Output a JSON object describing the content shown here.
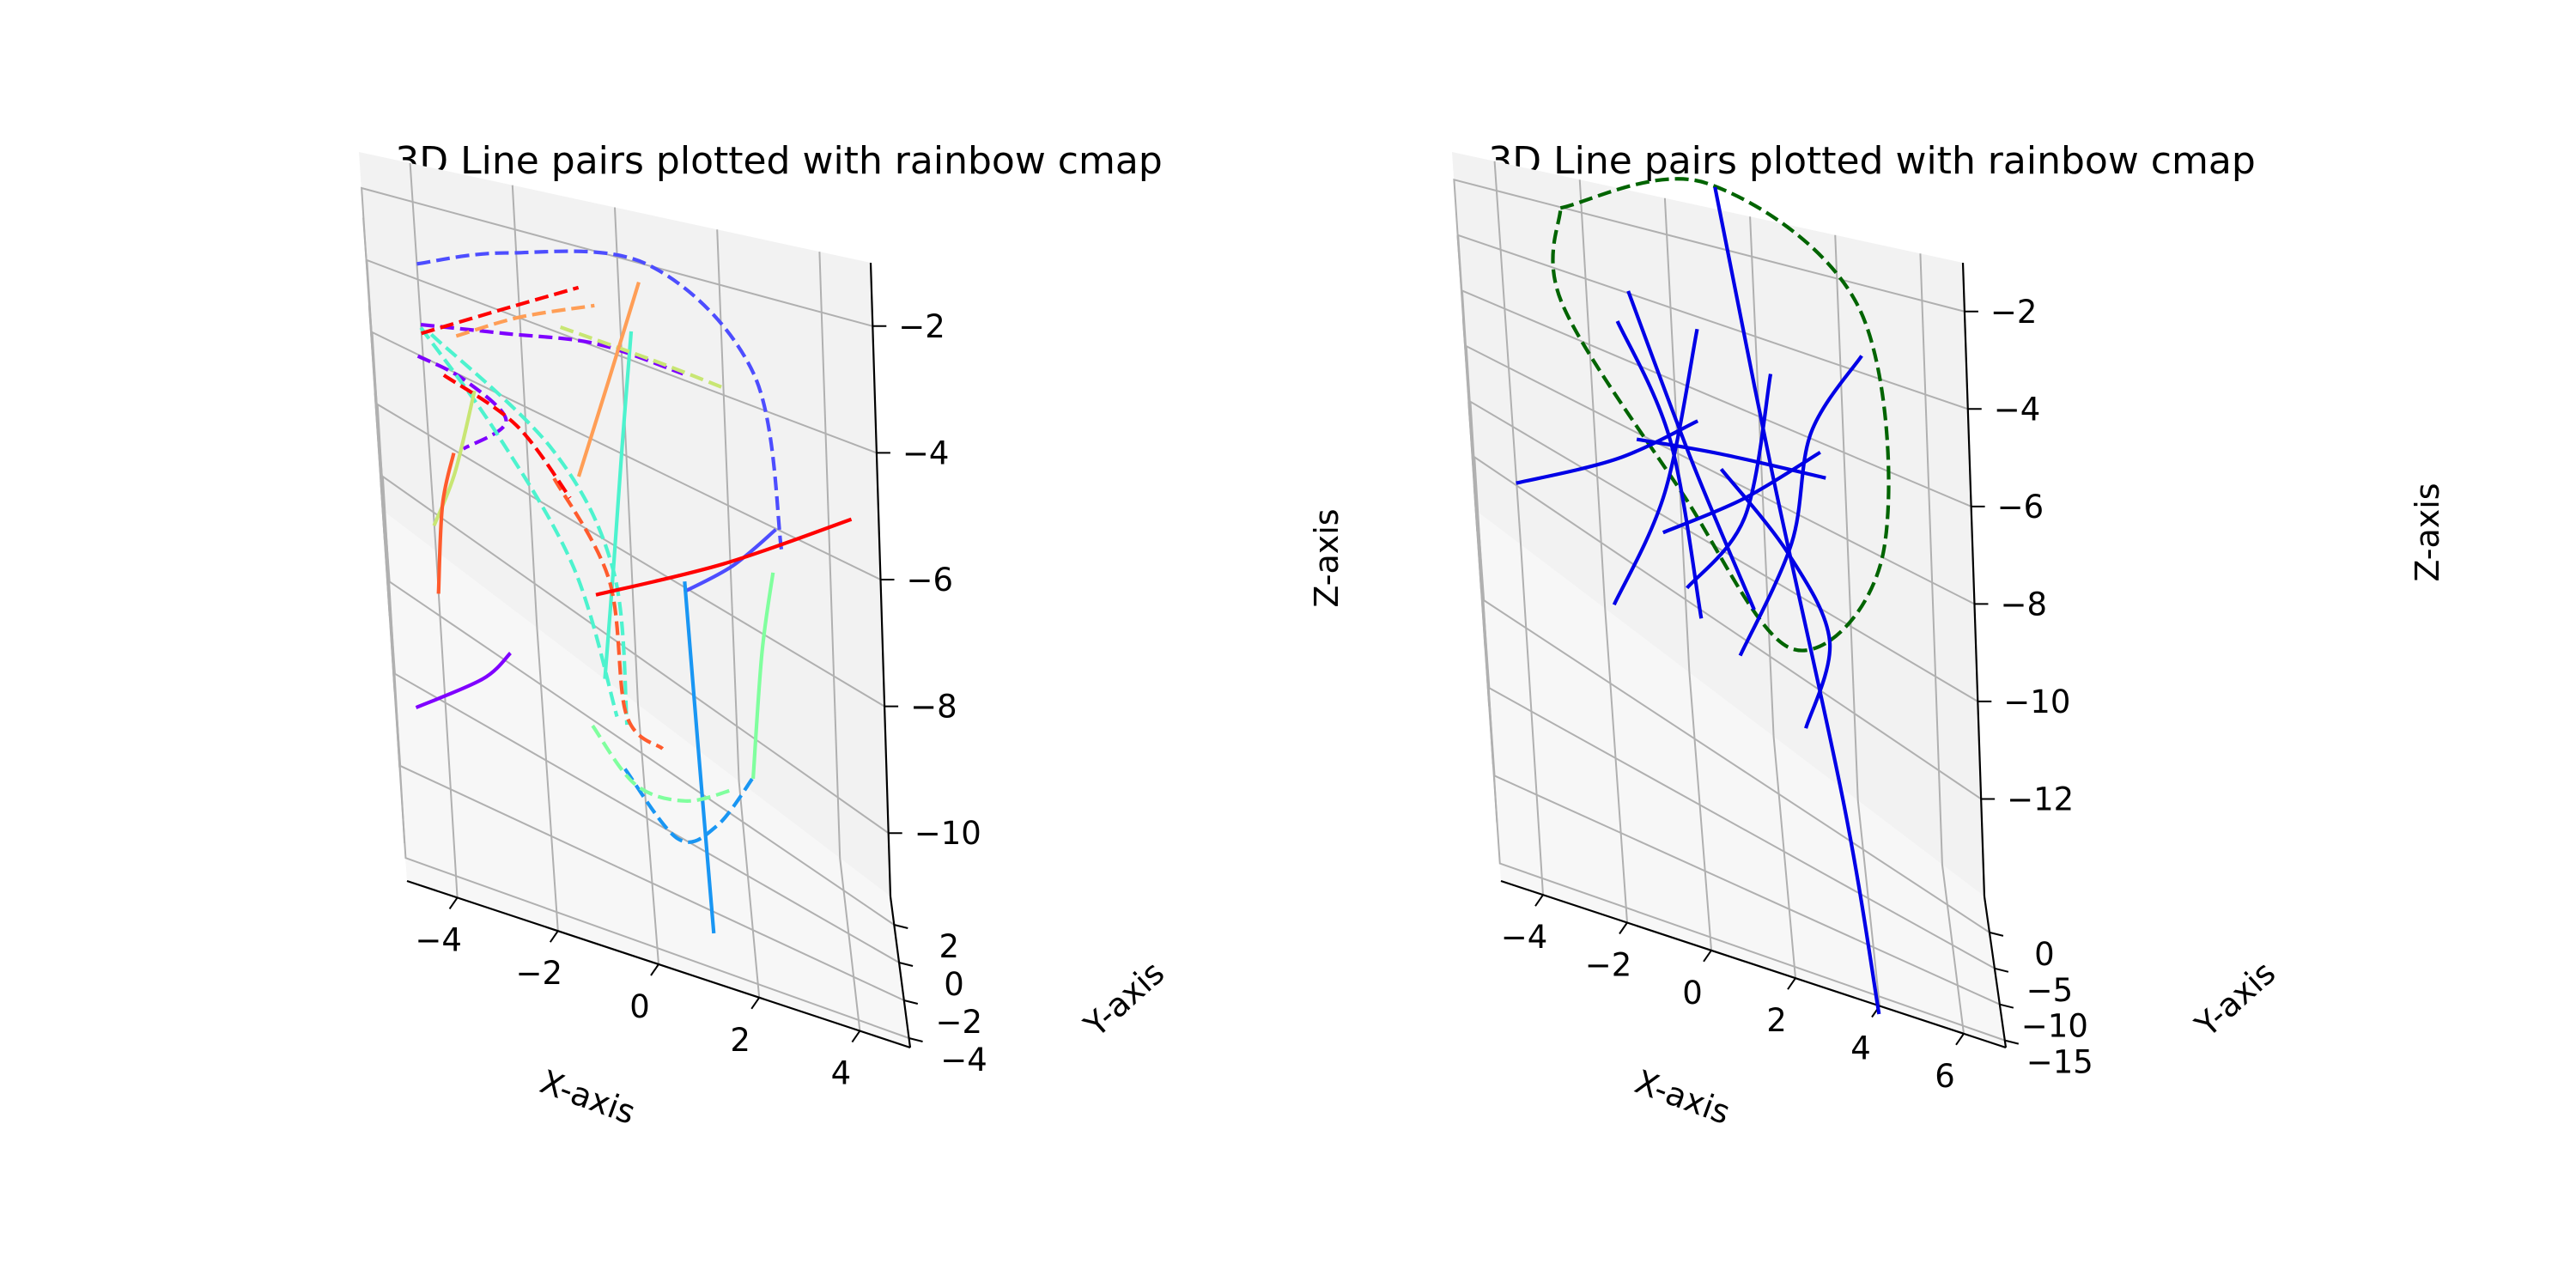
{
  "figure": {
    "background": "#ffffff",
    "pane_colors": [
      "#ececec",
      "#f2f2f2",
      "#f7f7f7"
    ],
    "grid_color": "#b0b0b0"
  },
  "chart_data": [
    {
      "type": "line3d",
      "title": "3D Line pairs plotted with rainbow cmap",
      "xlabel": "X-axis",
      "ylabel": "Y-axis",
      "zlabel": "Z-axis",
      "xlim": [
        -5,
        5
      ],
      "ylim": [
        -4.5,
        3.5
      ],
      "zlim": [
        -11,
        -1
      ],
      "xticks": [
        -4,
        -2,
        0,
        2,
        4
      ],
      "xtick_labels": [
        "−4",
        "−2",
        "0",
        "2",
        "4"
      ],
      "yticks": [
        -4,
        -2,
        0,
        2
      ],
      "ytick_labels": [
        "−4",
        "−2",
        "0",
        "2"
      ],
      "zticks": [
        -10,
        -8,
        -6,
        -4,
        -2
      ],
      "ztick_labels": [
        "−10",
        "−8",
        "−6",
        "−4",
        "−2"
      ],
      "grid": true,
      "legend": "none",
      "colormap": "rainbow",
      "series": [
        {
          "color": "#7f00ff",
          "style": "solid",
          "points": [
            [
              -4.6,
              -1.5,
              -9.8
            ],
            [
              -3.2,
              -0.6,
              -9.2
            ],
            [
              -2.6,
              0.0,
              -8.8
            ]
          ]
        },
        {
          "color": "#7f00ff",
          "style": "dashed",
          "points": [
            [
              -4.1,
              2.5,
              -4.9
            ],
            [
              -3.2,
              2.2,
              -4.7
            ],
            [
              -2.4,
              1.8,
              -4.9
            ],
            [
              -3.3,
              1.2,
              -5.4
            ]
          ]
        },
        {
          "color": "#7f00ff",
          "style": "dashed",
          "points": [
            [
              -4.0,
              3.0,
              -4.6
            ],
            [
              -2.3,
              3.0,
              -4.0
            ],
            [
              -0.5,
              3.0,
              -3.5
            ],
            [
              1.2,
              3.0,
              -3.5
            ]
          ]
        },
        {
          "color": "#4d4dff",
          "style": "dashed",
          "points": [
            [
              -4.0,
              3.5,
              -3.6
            ],
            [
              -2.2,
              3.5,
              -2.6
            ],
            [
              0.6,
              3.4,
              -1.9
            ],
            [
              2.6,
              2.4,
              -2.6
            ],
            [
              3.0,
              1.4,
              -5.0
            ]
          ]
        },
        {
          "color": "#4d4dff",
          "style": "solid",
          "points": [
            [
              1.0,
              0.8,
              -6.2
            ],
            [
              2.0,
              1.0,
              -5.4
            ],
            [
              2.9,
              1.2,
              -4.5
            ]
          ]
        },
        {
          "color": "#1996f3",
          "style": "solid",
          "points": [
            [
              1.0,
              -1.0,
              -4.5
            ],
            [
              1.1,
              -1.5,
              -8.0
            ],
            [
              1.2,
              -2.0,
              -11.5
            ]
          ]
        },
        {
          "color": "#1996f3",
          "style": "dashed",
          "points": [
            [
              -0.4,
              -0.2,
              -10.0
            ],
            [
              0.6,
              -0.4,
              -10.8
            ],
            [
              1.4,
              -0.8,
              -9.8
            ],
            [
              2.2,
              -1.0,
              -8.2
            ]
          ]
        },
        {
          "color": "#4df3ce",
          "style": "dashed",
          "points": [
            [
              -3.8,
              2.6,
              -4.3
            ],
            [
              -1.5,
              2.2,
              -5.5
            ],
            [
              -0.4,
              1.5,
              -7.0
            ],
            [
              -0.3,
              0.5,
              -9.5
            ]
          ]
        },
        {
          "color": "#4df3ce",
          "style": "solid",
          "points": [
            [
              -0.7,
              0.6,
              -8.8
            ],
            [
              -0.4,
              1.0,
              -6.5
            ],
            [
              -0.1,
              1.6,
              -4.3
            ],
            [
              0.2,
              2.2,
              -2.3
            ]
          ]
        },
        {
          "color": "#4df3ce",
          "style": "dashed",
          "points": [
            [
              -4.0,
              2.4,
              -4.0
            ],
            [
              -2.6,
              2.0,
              -5.5
            ],
            [
              -1.2,
              1.3,
              -7.2
            ],
            [
              -0.5,
              0.2,
              -9.2
            ]
          ]
        },
        {
          "color": "#80ff9e",
          "style": "solid",
          "points": [
            [
              2.2,
              0.0,
              -8.9
            ],
            [
              2.5,
              0.4,
              -6.5
            ],
            [
              2.8,
              0.7,
              -5.0
            ]
          ]
        },
        {
          "color": "#80ff9e",
          "style": "dashed",
          "points": [
            [
              -1.0,
              0.8,
              -10.2
            ],
            [
              -0.2,
              0.3,
              -10.6
            ],
            [
              0.8,
              -0.2,
              -10.0
            ],
            [
              1.8,
              -0.8,
              -8.8
            ]
          ]
        },
        {
          "color": "#c8e673",
          "style": "solid",
          "points": [
            [
              -4.0,
              2.3,
              -9.0
            ],
            [
              -3.5,
              2.5,
              -7.5
            ],
            [
              -3.0,
              2.8,
              -5.5
            ]
          ]
        },
        {
          "color": "#c8e673",
          "style": "dashed",
          "points": [
            [
              -1.2,
              3.1,
              -3.5
            ],
            [
              0.6,
              3.2,
              -3.6
            ],
            [
              2.0,
              3.0,
              -3.5
            ]
          ]
        },
        {
          "color": "#ff9e56",
          "style": "dashed",
          "points": [
            [
              -3.3,
              2.6,
              -4.1
            ],
            [
              -2.0,
              2.8,
              -3.3
            ],
            [
              -0.5,
              3.0,
              -2.7
            ]
          ]
        },
        {
          "color": "#ff9e56",
          "style": "solid",
          "points": [
            [
              -1.0,
              1.8,
              -5.5
            ],
            [
              -0.3,
              2.2,
              -3.5
            ],
            [
              0.4,
              2.6,
              -1.6
            ]
          ]
        },
        {
          "color": "#ff5b2d",
          "style": "solid",
          "points": [
            [
              -4.0,
              1.8,
              -10.2
            ],
            [
              -3.8,
              2.0,
              -8.0
            ],
            [
              -3.5,
              2.3,
              -6.8
            ]
          ]
        },
        {
          "color": "#ff5b2d",
          "style": "dashed",
          "points": [
            [
              -1.5,
              1.6,
              -5.6
            ],
            [
              -0.5,
              1.2,
              -7.0
            ],
            [
              -0.3,
              0.8,
              -9.5
            ],
            [
              0.4,
              0.5,
              -9.6
            ]
          ]
        },
        {
          "color": "#ff0000",
          "style": "solid",
          "points": [
            [
              -0.8,
              -0.6,
              -5.9
            ],
            [
              1.8,
              -0.8,
              -4.0
            ],
            [
              4.4,
              -1.0,
              -2.1
            ]
          ]
        },
        {
          "color": "#ff0000",
          "style": "dashed",
          "points": [
            [
              -4.0,
              2.8,
              -4.6
            ],
            [
              -2.4,
              3.1,
              -3.6
            ],
            [
              -0.8,
              3.2,
              -2.6
            ]
          ]
        },
        {
          "color": "#ff0000",
          "style": "dashed",
          "points": [
            [
              -3.6,
              2.3,
              -4.9
            ],
            [
              -2.2,
              2.0,
              -5.1
            ],
            [
              -1.2,
              1.5,
              -5.8
            ]
          ]
        }
      ]
    },
    {
      "type": "line3d",
      "title": "3D Line pairs plotted with rainbow cmap",
      "xlabel": "X-axis",
      "ylabel": "Y-axis",
      "zlabel": "Z-axis",
      "xlim": [
        -5,
        7
      ],
      "ylim": [
        -16,
        5
      ],
      "zlim": [
        -14,
        -1
      ],
      "xticks": [
        -4,
        -2,
        0,
        2,
        4,
        6
      ],
      "xtick_labels": [
        "−4",
        "−2",
        "0",
        "2",
        "4",
        "6"
      ],
      "yticks": [
        -15,
        -10,
        -5,
        0
      ],
      "ytick_labels": [
        "−15",
        "−10",
        "−5",
        "0"
      ],
      "zticks": [
        -12,
        -10,
        -8,
        -6,
        -4,
        -2
      ],
      "ztick_labels": [
        "−12",
        "−10",
        "−8",
        "−6",
        "−4",
        "−2"
      ],
      "grid": true,
      "legend": "none",
      "colormap": "rainbow",
      "series": [
        {
          "color": "#006400",
          "style": "dashed",
          "points": [
            [
              -2.5,
              4.0,
              -1.5
            ],
            [
              1.0,
              4.2,
              0.0
            ],
            [
              4.5,
              3.0,
              -1.8
            ],
            [
              4.8,
              -1.0,
              -6.0
            ],
            [
              2.5,
              -2.5,
              -9.0
            ],
            [
              0.0,
              -1.0,
              -6.5
            ],
            [
              -2.6,
              2.0,
              -3.5
            ],
            [
              -2.5,
              4.0,
              -1.5
            ]
          ]
        },
        {
          "color": "#0000e6",
          "style": "solid",
          "points": [
            [
              1.2,
              4.5,
              -0.2
            ],
            [
              2.2,
              -2.0,
              -4.5
            ],
            [
              3.5,
              -7.5,
              -11.0
            ],
            [
              4.0,
              -13.5,
              -15.0
            ]
          ]
        },
        {
          "color": "#0000e6",
          "style": "solid",
          "points": [
            [
              -1.0,
              2.0,
              -2.5
            ],
            [
              0.3,
              -1.0,
              -5.5
            ],
            [
              1.6,
              -3.5,
              -8.0
            ]
          ]
        },
        {
          "color": "#0000e6",
          "style": "solid",
          "points": [
            [
              -1.3,
              2.0,
              -3.5
            ],
            [
              -0.2,
              -1.2,
              -5.0
            ],
            [
              0.3,
              -4.5,
              -8.5
            ]
          ]
        },
        {
          "color": "#0000e6",
          "style": "solid",
          "points": [
            [
              0.6,
              1.5,
              -2.8
            ],
            [
              -0.4,
              -1.5,
              -6.5
            ],
            [
              -1.8,
              -4.0,
              -9.5
            ]
          ]
        },
        {
          "color": "#0000e6",
          "style": "solid",
          "points": [
            [
              2.3,
              0.5,
              -3.0
            ],
            [
              1.5,
              -2.2,
              -6.0
            ],
            [
              0.0,
              -3.5,
              -8.2
            ]
          ]
        },
        {
          "color": "#0000e6",
          "style": "solid",
          "points": [
            [
              4.5,
              2.0,
              -2.5
            ],
            [
              3.2,
              0.0,
              -4.0
            ],
            [
              2.6,
              -1.5,
              -6.5
            ],
            [
              1.2,
              -3.5,
              -9.5
            ]
          ]
        },
        {
          "color": "#0000e6",
          "style": "solid",
          "points": [
            [
              3.4,
              0.2,
              -4.5
            ],
            [
              1.5,
              -1.0,
              -6.0
            ],
            [
              -0.5,
              -2.0,
              -7.5
            ]
          ]
        },
        {
          "color": "#0000e6",
          "style": "solid",
          "points": [
            [
              0.5,
              1.8,
              -5.5
            ],
            [
              -1.5,
              0.5,
              -7.0
            ],
            [
              -4.0,
              -0.5,
              -8.8
            ]
          ]
        },
        {
          "color": "#0000e6",
          "style": "solid",
          "points": [
            [
              -1.0,
              0.6,
              -6.2
            ],
            [
              1.0,
              0.2,
              -5.5
            ],
            [
              3.5,
              -0.6,
              -4.8
            ]
          ]
        },
        {
          "color": "#0000e6",
          "style": "solid",
          "points": [
            [
              1.0,
              0.4,
              -6.0
            ],
            [
              2.5,
              -1.0,
              -7.0
            ],
            [
              3.4,
              -2.0,
              -8.5
            ],
            [
              2.7,
              -4.0,
              -10.5
            ]
          ]
        }
      ]
    }
  ]
}
